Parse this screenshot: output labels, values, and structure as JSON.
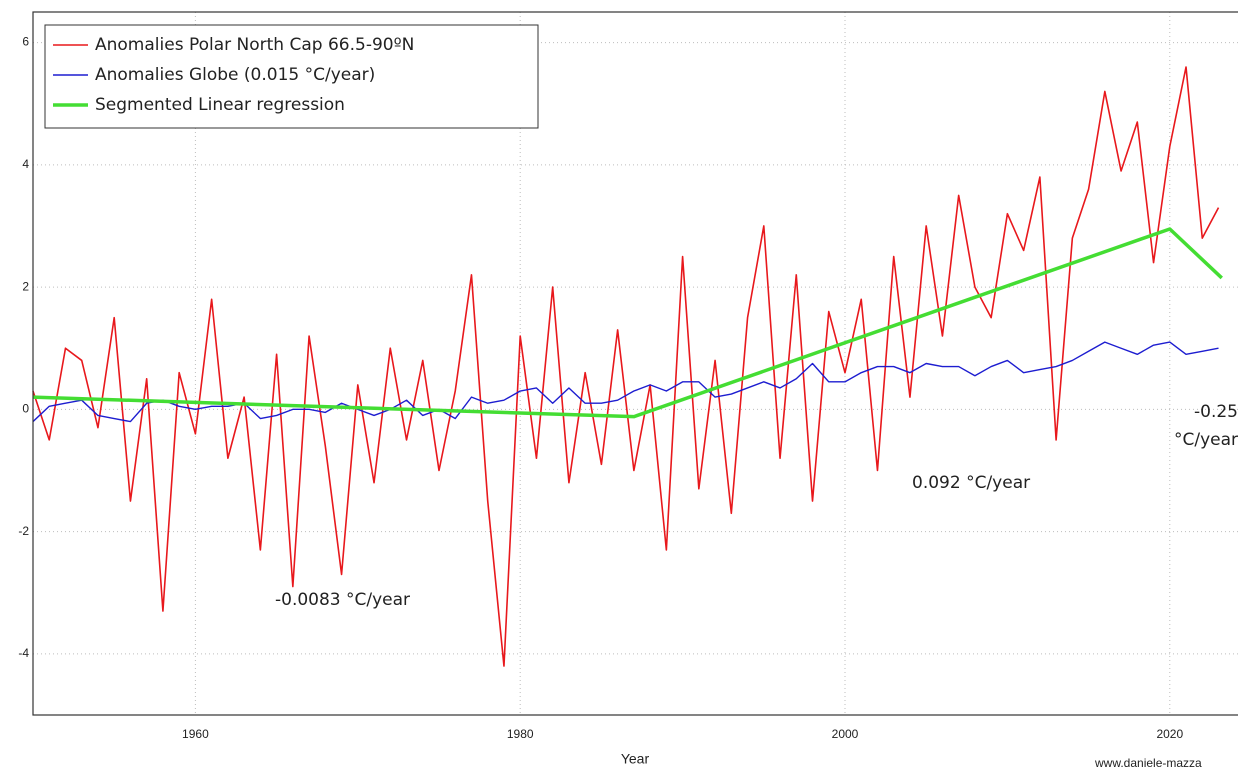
{
  "chart_data": {
    "type": "line",
    "x_label": "Year",
    "credit": "www.daniele-mazza",
    "xlim": [
      1950,
      2024.2
    ],
    "ylim": [
      -5,
      6.5
    ],
    "xticks": [
      1960,
      1980,
      2000,
      2020
    ],
    "yticks": [
      -4,
      -2,
      0,
      2,
      4,
      6
    ],
    "grid": true,
    "legend": "upper left",
    "x": [
      1950,
      1951,
      1952,
      1953,
      1954,
      1955,
      1956,
      1957,
      1958,
      1959,
      1960,
      1961,
      1962,
      1963,
      1964,
      1965,
      1966,
      1967,
      1968,
      1969,
      1970,
      1971,
      1972,
      1973,
      1974,
      1975,
      1976,
      1977,
      1978,
      1979,
      1980,
      1981,
      1982,
      1983,
      1984,
      1985,
      1986,
      1987,
      1988,
      1989,
      1990,
      1991,
      1992,
      1993,
      1994,
      1995,
      1996,
      1997,
      1998,
      1999,
      2000,
      2001,
      2002,
      2003,
      2004,
      2005,
      2006,
      2007,
      2008,
      2009,
      2010,
      2011,
      2012,
      2013,
      2014,
      2015,
      2016,
      2017,
      2018,
      2019,
      2020,
      2021,
      2022,
      2023
    ],
    "series": [
      {
        "name": "Anomalies Polar North Cap 66.5-90ºN",
        "color": "#e8181c",
        "width": 1.6,
        "values": [
          0.3,
          -0.5,
          1.0,
          0.8,
          -0.3,
          1.5,
          -1.5,
          0.5,
          -3.3,
          0.6,
          -0.4,
          1.8,
          -0.8,
          0.2,
          -2.3,
          0.9,
          -2.9,
          1.2,
          -0.6,
          -2.7,
          0.4,
          -1.2,
          1.0,
          -0.5,
          0.8,
          -1.0,
          0.3,
          2.2,
          -1.5,
          -4.2,
          1.2,
          -0.8,
          2.0,
          -1.2,
          0.6,
          -0.9,
          1.3,
          -1.0,
          0.4,
          -2.3,
          2.5,
          -1.3,
          0.8,
          -1.7,
          1.5,
          3.0,
          -0.8,
          2.2,
          -1.5,
          1.6,
          0.6,
          1.8,
          -1.0,
          2.5,
          0.2,
          3.0,
          1.2,
          3.5,
          2.0,
          1.5,
          3.2,
          2.6,
          3.8,
          -0.5,
          2.8,
          3.6,
          5.2,
          3.9,
          4.7,
          2.4,
          4.3,
          5.6,
          2.8,
          3.3
        ]
      },
      {
        "name": "Anomalies Globe (0.015 °C/year)",
        "color": "#1d1dd0",
        "width": 1.4,
        "values": [
          -0.2,
          0.05,
          0.1,
          0.15,
          -0.1,
          -0.15,
          -0.2,
          0.1,
          0.15,
          0.05,
          0.0,
          0.05,
          0.05,
          0.1,
          -0.15,
          -0.1,
          0.0,
          0.0,
          -0.05,
          0.1,
          0.0,
          -0.1,
          0.0,
          0.15,
          -0.1,
          0.0,
          -0.15,
          0.2,
          0.1,
          0.15,
          0.3,
          0.35,
          0.1,
          0.35,
          0.1,
          0.1,
          0.15,
          0.3,
          0.4,
          0.3,
          0.45,
          0.45,
          0.2,
          0.25,
          0.35,
          0.45,
          0.35,
          0.5,
          0.75,
          0.45,
          0.45,
          0.6,
          0.7,
          0.7,
          0.6,
          0.75,
          0.7,
          0.7,
          0.55,
          0.7,
          0.8,
          0.6,
          0.65,
          0.7,
          0.8,
          0.95,
          1.1,
          1.0,
          0.9,
          1.05,
          1.1,
          0.9,
          0.95,
          1.0
        ]
      }
    ],
    "regression": {
      "name": "Segmented Linear regression",
      "color": "#44dd33",
      "width": 3.5,
      "x": [
        1950,
        1987,
        2020,
        2023.2
      ],
      "values": [
        0.2,
        -0.12,
        2.95,
        2.15
      ]
    },
    "annotations": [
      "-0.0083 °C/year",
      "0.092 °C/year",
      "-0.25",
      "°C/year"
    ]
  }
}
